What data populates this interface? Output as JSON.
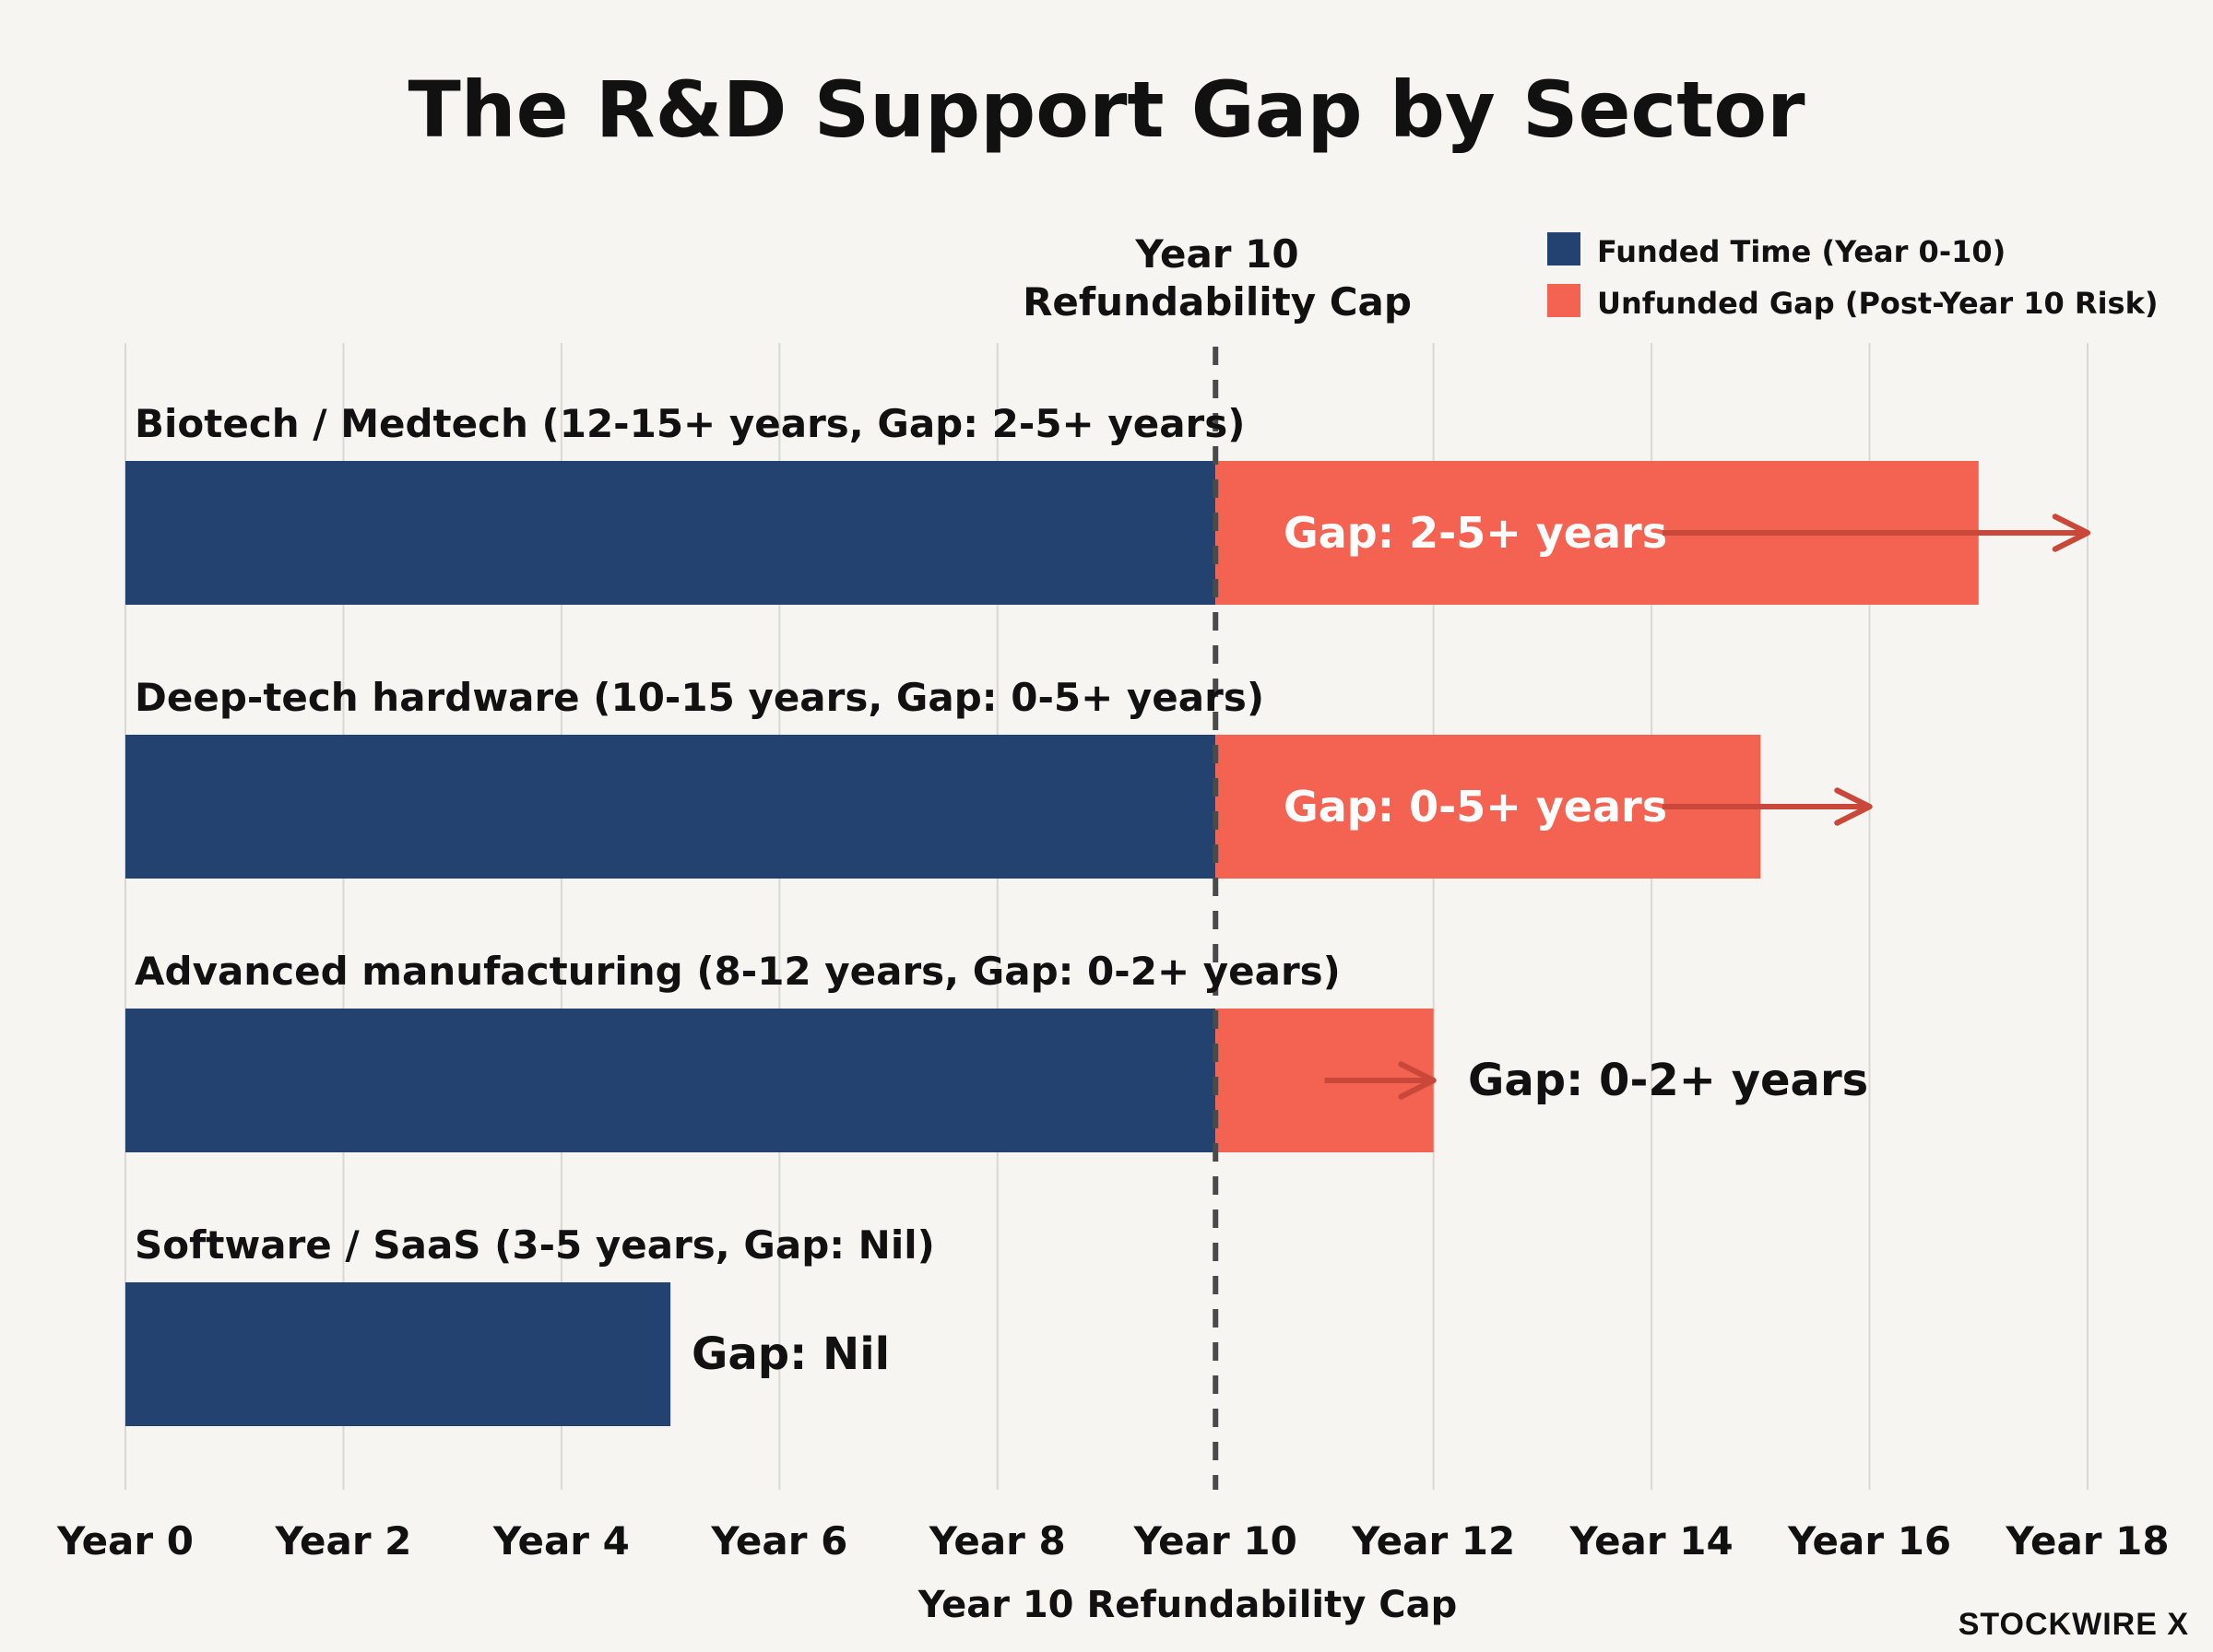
{
  "chart_data": {
    "type": "bar",
    "orientation": "horizontal",
    "stacked": true,
    "title": "The R&D Support Gap by Sector",
    "xlabel": "Year 10 Refundability Cap",
    "xlim": [
      0,
      18
    ],
    "x_ticks": [
      0,
      2,
      4,
      6,
      8,
      10,
      12,
      14,
      16,
      18
    ],
    "x_tick_labels": [
      "Year 0",
      "Year 2",
      "Year 4",
      "Year 6",
      "Year 8",
      "Year 10",
      "Year 12",
      "Year 14",
      "Year 16",
      "Year 18"
    ],
    "grid": "vertical",
    "reference_line": {
      "x": 10,
      "label_line1": "Year 10",
      "label_line2": "Refundability Cap",
      "style": "dashed"
    },
    "legend": {
      "placement": "top-right",
      "entries": [
        {
          "name": "Funded Time (Year 0-10)",
          "color": "#24426f"
        },
        {
          "name": "Unfunded Gap (Post-Year 10 Risk)",
          "color": "#f46352"
        }
      ]
    },
    "categories": [
      "Biotech / Medtech (12-15+ years, Gap: 2-5+ years)",
      "Deep-tech hardware (10-15 years, Gap: 0-5+ years)",
      "Advanced manufacturing (8-12 years, Gap: 0-2+ years)",
      "Software / SaaS (3-5 years, Gap: Nil)"
    ],
    "series": [
      {
        "name": "Funded Time (Year 0-10)",
        "color": "#24426f",
        "start": [
          0,
          0,
          0,
          0
        ],
        "end": [
          10,
          10,
          10,
          5
        ]
      },
      {
        "name": "Unfunded Gap (Post-Year 10 Risk)",
        "color": "#f46352",
        "start": [
          10,
          10,
          10,
          null
        ],
        "end": [
          17,
          15,
          12,
          null
        ]
      }
    ],
    "gap_labels": [
      "Gap: 2-5+ years",
      "Gap: 0-5+ years",
      "Gap: 0-2+ years",
      "Gap: Nil"
    ],
    "arrow_colors": {
      "arrow": "#c9483a"
    },
    "arrows": [
      {
        "from": 14.1,
        "to": 18
      },
      {
        "from": 14.1,
        "to": 16
      },
      {
        "from": 11.0,
        "to": 12
      },
      null
    ]
  },
  "branding": "STOCKWIRE X"
}
